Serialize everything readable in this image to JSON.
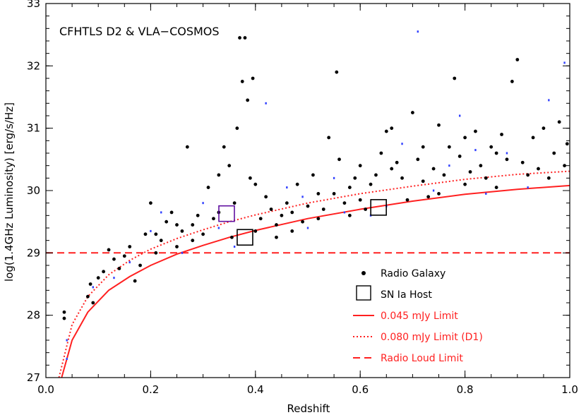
{
  "chart_data": {
    "type": "scatter",
    "title": "",
    "annotation": "CFHTLS D2 & VLA−COSMOS",
    "xlabel": "Redshift",
    "ylabel": "log(1.4GHz Luminosity) [erg/s/Hz]",
    "xlim": [
      0.0,
      1.0
    ],
    "ylim": [
      27,
      33
    ],
    "xticks": [
      0.0,
      0.2,
      0.4,
      0.6,
      0.8,
      1.0
    ],
    "xtick_labels": [
      "0.0",
      "0.2",
      "0.4",
      "0.6",
      "0.8",
      "1.0"
    ],
    "yticks": [
      27,
      28,
      29,
      30,
      31,
      32,
      33
    ],
    "ytick_labels": [
      "27",
      "28",
      "29",
      "30",
      "31",
      "32",
      "33"
    ],
    "legend_position": "lower-right",
    "legend": [
      {
        "label": "Radio Galaxy",
        "marker": "filled-circle",
        "color": "#000000"
      },
      {
        "label": "SN Ia Host",
        "marker": "open-square",
        "color": "#000000"
      },
      {
        "label": "0.045 mJy Limit",
        "style": "solid",
        "color": "#ff2020"
      },
      {
        "label": "0.080 mJy Limit (D1)",
        "style": "dotted",
        "color": "#ff2020"
      },
      {
        "label": "Radio Loud Limit",
        "style": "dashed",
        "color": "#ff2020"
      }
    ],
    "series": [
      {
        "name": "Radio Galaxy",
        "color": "#000000",
        "points": [
          [
            0.035,
            28.05
          ],
          [
            0.035,
            27.95
          ],
          [
            0.08,
            28.3
          ],
          [
            0.085,
            28.5
          ],
          [
            0.09,
            28.2
          ],
          [
            0.1,
            28.6
          ],
          [
            0.11,
            28.7
          ],
          [
            0.12,
            29.05
          ],
          [
            0.13,
            28.9
          ],
          [
            0.14,
            28.75
          ],
          [
            0.15,
            28.95
          ],
          [
            0.16,
            29.1
          ],
          [
            0.17,
            28.55
          ],
          [
            0.18,
            28.8
          ],
          [
            0.19,
            29.3
          ],
          [
            0.2,
            29.8
          ],
          [
            0.21,
            29.0
          ],
          [
            0.22,
            29.2
          ],
          [
            0.23,
            29.5
          ],
          [
            0.24,
            29.65
          ],
          [
            0.25,
            29.1
          ],
          [
            0.26,
            29.35
          ],
          [
            0.27,
            30.7
          ],
          [
            0.28,
            29.45
          ],
          [
            0.29,
            29.6
          ],
          [
            0.3,
            29.3
          ],
          [
            0.31,
            30.05
          ],
          [
            0.32,
            29.55
          ],
          [
            0.33,
            30.25
          ],
          [
            0.34,
            30.7
          ],
          [
            0.35,
            30.4
          ],
          [
            0.355,
            29.25
          ],
          [
            0.36,
            29.8
          ],
          [
            0.365,
            31.0
          ],
          [
            0.37,
            32.45
          ],
          [
            0.375,
            31.75
          ],
          [
            0.38,
            32.45
          ],
          [
            0.385,
            31.45
          ],
          [
            0.39,
            30.2
          ],
          [
            0.395,
            31.8
          ],
          [
            0.4,
            30.1
          ],
          [
            0.41,
            29.55
          ],
          [
            0.42,
            29.9
          ],
          [
            0.43,
            29.7
          ],
          [
            0.44,
            29.45
          ],
          [
            0.45,
            29.6
          ],
          [
            0.46,
            29.8
          ],
          [
            0.47,
            29.35
          ],
          [
            0.48,
            30.1
          ],
          [
            0.49,
            29.5
          ],
          [
            0.5,
            29.75
          ],
          [
            0.51,
            30.25
          ],
          [
            0.52,
            29.55
          ],
          [
            0.53,
            29.7
          ],
          [
            0.54,
            30.85
          ],
          [
            0.55,
            29.95
          ],
          [
            0.555,
            31.9
          ],
          [
            0.56,
            30.5
          ],
          [
            0.57,
            29.8
          ],
          [
            0.58,
            30.05
          ],
          [
            0.59,
            30.2
          ],
          [
            0.6,
            30.4
          ],
          [
            0.61,
            29.7
          ],
          [
            0.62,
            30.1
          ],
          [
            0.63,
            30.25
          ],
          [
            0.64,
            30.6
          ],
          [
            0.65,
            30.95
          ],
          [
            0.66,
            31.0
          ],
          [
            0.67,
            30.45
          ],
          [
            0.68,
            30.2
          ],
          [
            0.69,
            29.85
          ],
          [
            0.7,
            31.25
          ],
          [
            0.71,
            30.5
          ],
          [
            0.72,
            30.15
          ],
          [
            0.73,
            29.9
          ],
          [
            0.74,
            30.35
          ],
          [
            0.75,
            31.05
          ],
          [
            0.76,
            30.25
          ],
          [
            0.77,
            30.7
          ],
          [
            0.78,
            31.8
          ],
          [
            0.79,
            30.55
          ],
          [
            0.8,
            30.1
          ],
          [
            0.81,
            30.3
          ],
          [
            0.82,
            30.95
          ],
          [
            0.83,
            30.4
          ],
          [
            0.84,
            30.2
          ],
          [
            0.85,
            30.7
          ],
          [
            0.86,
            30.05
          ],
          [
            0.87,
            30.9
          ],
          [
            0.88,
            30.5
          ],
          [
            0.89,
            31.75
          ],
          [
            0.9,
            32.1
          ],
          [
            0.91,
            30.45
          ],
          [
            0.92,
            30.25
          ],
          [
            0.93,
            30.85
          ],
          [
            0.94,
            30.35
          ],
          [
            0.95,
            31.0
          ],
          [
            0.96,
            30.2
          ],
          [
            0.97,
            30.6
          ],
          [
            0.98,
            31.1
          ],
          [
            0.99,
            30.4
          ],
          [
            0.995,
            30.75
          ],
          [
            0.44,
            29.25
          ],
          [
            0.52,
            29.95
          ],
          [
            0.6,
            29.85
          ],
          [
            0.66,
            30.35
          ],
          [
            0.72,
            30.7
          ],
          [
            0.8,
            30.85
          ],
          [
            0.86,
            30.6
          ],
          [
            0.75,
            29.95
          ],
          [
            0.58,
            29.6
          ],
          [
            0.47,
            29.65
          ],
          [
            0.4,
            29.35
          ],
          [
            0.33,
            29.65
          ],
          [
            0.28,
            29.2
          ],
          [
            0.25,
            29.45
          ],
          [
            0.21,
            29.3
          ]
        ]
      },
      {
        "name": "Secondary points (blue/purple)",
        "color": "#3040ff",
        "points": [
          [
            0.04,
            27.6
          ],
          [
            0.04,
            27.3
          ],
          [
            0.09,
            28.45
          ],
          [
            0.13,
            28.6
          ],
          [
            0.16,
            28.85
          ],
          [
            0.2,
            29.35
          ],
          [
            0.22,
            29.65
          ],
          [
            0.26,
            29.0
          ],
          [
            0.3,
            29.8
          ],
          [
            0.33,
            29.4
          ],
          [
            0.36,
            29.1
          ],
          [
            0.42,
            31.4
          ],
          [
            0.46,
            30.05
          ],
          [
            0.5,
            29.4
          ],
          [
            0.55,
            30.2
          ],
          [
            0.62,
            29.6
          ],
          [
            0.68,
            30.75
          ],
          [
            0.71,
            32.55
          ],
          [
            0.74,
            30.0
          ],
          [
            0.79,
            31.2
          ],
          [
            0.84,
            29.95
          ],
          [
            0.88,
            30.6
          ],
          [
            0.92,
            30.05
          ],
          [
            0.96,
            31.45
          ],
          [
            0.99,
            32.05
          ],
          [
            0.65,
            29.75
          ],
          [
            0.77,
            30.4
          ],
          [
            0.82,
            30.65
          ],
          [
            0.57,
            29.65
          ],
          [
            0.49,
            29.9
          ]
        ]
      }
    ],
    "sn_ia_hosts": [
      {
        "x": 0.345,
        "y": 29.63,
        "color": "#6010a0"
      },
      {
        "x": 0.38,
        "y": 29.25,
        "color": "#000000"
      },
      {
        "x": 0.635,
        "y": 29.73,
        "color": "#000000"
      }
    ],
    "limit_curves": {
      "0.045 mJy Limit": [
        [
          0.03,
          27.0
        ],
        [
          0.05,
          27.6
        ],
        [
          0.08,
          28.05
        ],
        [
          0.12,
          28.4
        ],
        [
          0.16,
          28.62
        ],
        [
          0.2,
          28.8
        ],
        [
          0.25,
          28.98
        ],
        [
          0.3,
          29.12
        ],
        [
          0.35,
          29.25
        ],
        [
          0.4,
          29.36
        ],
        [
          0.5,
          29.55
        ],
        [
          0.6,
          29.7
        ],
        [
          0.7,
          29.83
        ],
        [
          0.8,
          29.94
        ],
        [
          0.9,
          30.02
        ],
        [
          1.0,
          30.08
        ]
      ],
      "0.080 mJy Limit (D1)": [
        [
          0.025,
          27.0
        ],
        [
          0.05,
          27.85
        ],
        [
          0.08,
          28.3
        ],
        [
          0.12,
          28.65
        ],
        [
          0.16,
          28.88
        ],
        [
          0.2,
          29.06
        ],
        [
          0.25,
          29.23
        ],
        [
          0.3,
          29.37
        ],
        [
          0.35,
          29.5
        ],
        [
          0.4,
          29.61
        ],
        [
          0.5,
          29.8
        ],
        [
          0.6,
          29.95
        ],
        [
          0.7,
          30.07
        ],
        [
          0.8,
          30.18
        ],
        [
          0.9,
          30.26
        ],
        [
          1.0,
          30.31
        ]
      ],
      "Radio Loud Limit": [
        [
          0.0,
          29.0
        ],
        [
          1.0,
          29.0
        ]
      ]
    }
  }
}
